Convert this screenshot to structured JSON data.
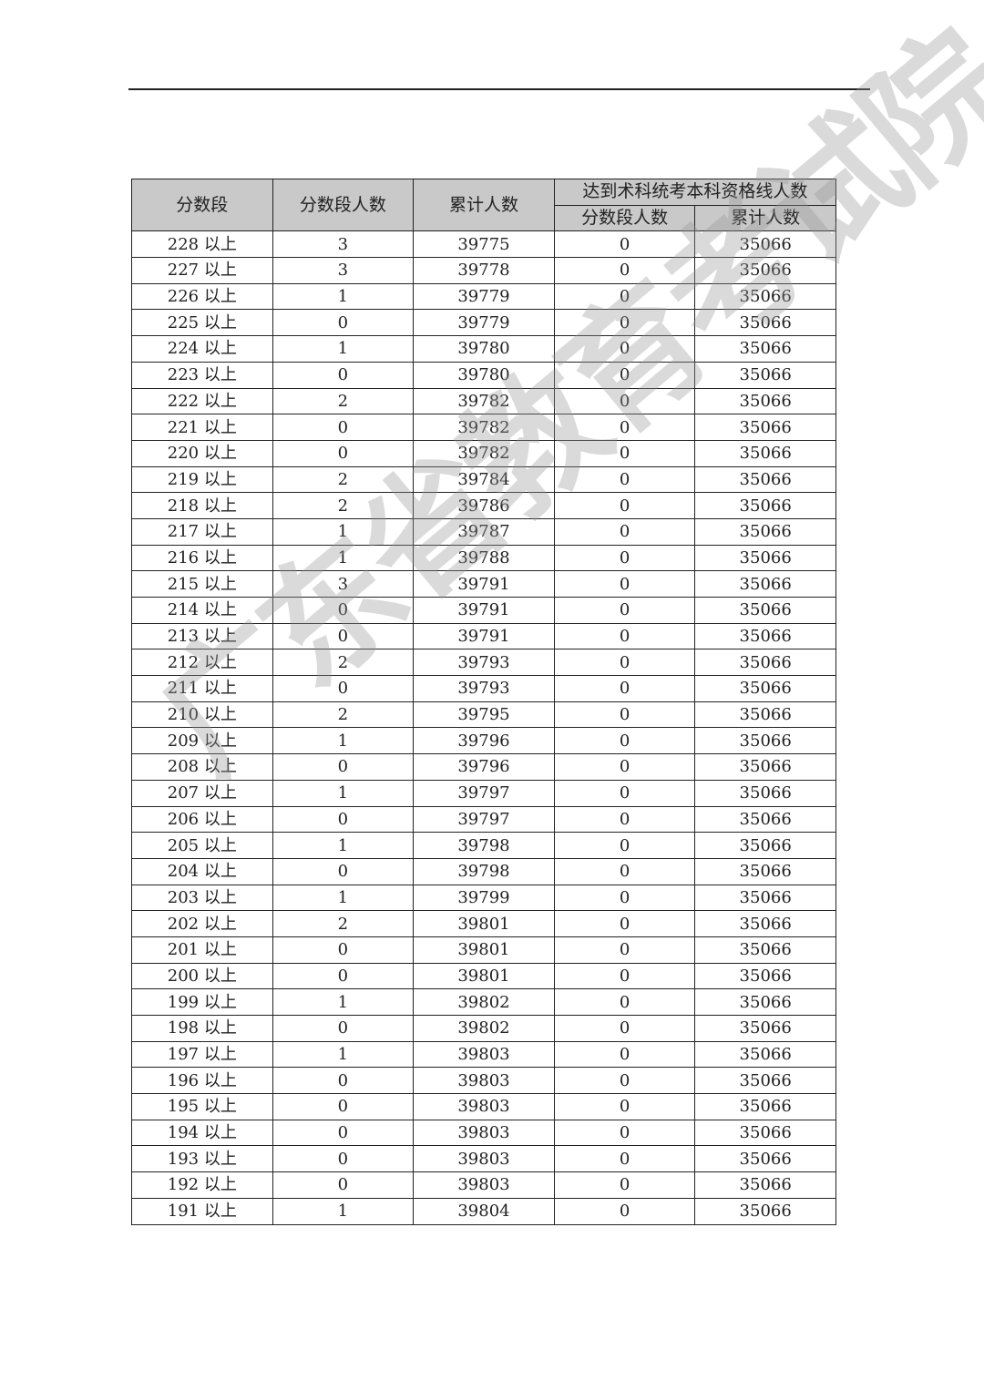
{
  "header": {
    "col_score": "分数段",
    "col_segment_count": "分数段人数",
    "col_cumulative": "累计人数",
    "group_title": "达到术科统考本科资格线人数",
    "sub_segment_count": "分数段人数",
    "sub_cumulative": "累计人数"
  },
  "rows": [
    [
      "228 以上",
      "3",
      "39775",
      "0",
      "35066"
    ],
    [
      "227 以上",
      "3",
      "39778",
      "0",
      "35066"
    ],
    [
      "226 以上",
      "1",
      "39779",
      "0",
      "35066"
    ],
    [
      "225 以上",
      "0",
      "39779",
      "0",
      "35066"
    ],
    [
      "224 以上",
      "1",
      "39780",
      "0",
      "35066"
    ],
    [
      "223 以上",
      "0",
      "39780",
      "0",
      "35066"
    ],
    [
      "222 以上",
      "2",
      "39782",
      "0",
      "35066"
    ],
    [
      "221 以上",
      "0",
      "39782",
      "0",
      "35066"
    ],
    [
      "220 以上",
      "0",
      "39782",
      "0",
      "35066"
    ],
    [
      "219 以上",
      "2",
      "39784",
      "0",
      "35066"
    ],
    [
      "218 以上",
      "2",
      "39786",
      "0",
      "35066"
    ],
    [
      "217 以上",
      "1",
      "39787",
      "0",
      "35066"
    ],
    [
      "216 以上",
      "1",
      "39788",
      "0",
      "35066"
    ],
    [
      "215 以上",
      "3",
      "39791",
      "0",
      "35066"
    ],
    [
      "214 以上",
      "0",
      "39791",
      "0",
      "35066"
    ],
    [
      "213 以上",
      "0",
      "39791",
      "0",
      "35066"
    ],
    [
      "212 以上",
      "2",
      "39793",
      "0",
      "35066"
    ],
    [
      "211 以上",
      "0",
      "39793",
      "0",
      "35066"
    ],
    [
      "210 以上",
      "2",
      "39795",
      "0",
      "35066"
    ],
    [
      "209 以上",
      "1",
      "39796",
      "0",
      "35066"
    ],
    [
      "208 以上",
      "0",
      "39796",
      "0",
      "35066"
    ],
    [
      "207 以上",
      "1",
      "39797",
      "0",
      "35066"
    ],
    [
      "206 以上",
      "0",
      "39797",
      "0",
      "35066"
    ],
    [
      "205 以上",
      "1",
      "39798",
      "0",
      "35066"
    ],
    [
      "204 以上",
      "0",
      "39798",
      "0",
      "35066"
    ],
    [
      "203 以上",
      "1",
      "39799",
      "0",
      "35066"
    ],
    [
      "202 以上",
      "2",
      "39801",
      "0",
      "35066"
    ],
    [
      "201 以上",
      "0",
      "39801",
      "0",
      "35066"
    ],
    [
      "200 以上",
      "0",
      "39801",
      "0",
      "35066"
    ],
    [
      "199 以上",
      "1",
      "39802",
      "0",
      "35066"
    ],
    [
      "198 以上",
      "0",
      "39802",
      "0",
      "35066"
    ],
    [
      "197 以上",
      "1",
      "39803",
      "0",
      "35066"
    ],
    [
      "196 以上",
      "0",
      "39803",
      "0",
      "35066"
    ],
    [
      "195 以上",
      "0",
      "39803",
      "0",
      "35066"
    ],
    [
      "194 以上",
      "0",
      "39803",
      "0",
      "35066"
    ],
    [
      "193 以上",
      "0",
      "39803",
      "0",
      "35066"
    ],
    [
      "192 以上",
      "0",
      "39803",
      "0",
      "35066"
    ],
    [
      "191 以上",
      "1",
      "39804",
      "0",
      "35066"
    ]
  ],
  "watermark": "广东省教育考试院"
}
